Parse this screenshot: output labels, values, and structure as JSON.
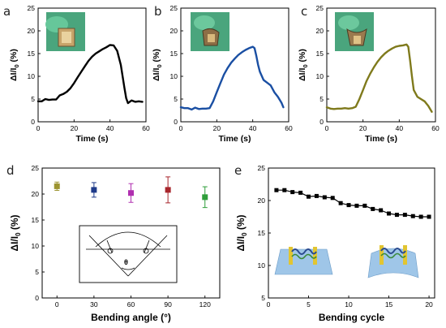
{
  "chart_data": [
    {
      "panel": "a",
      "type": "line",
      "xlabel": "Time (s)",
      "ylabel": "ΔI/I0 (%)",
      "xlim": [
        0,
        60
      ],
      "ylim": [
        0,
        25
      ],
      "xticks": [
        0,
        20,
        40,
        60
      ],
      "yticks": [
        0,
        5,
        10,
        15,
        20,
        25
      ],
      "color": "#000000",
      "x": [
        0,
        2,
        4,
        6,
        8,
        10,
        12,
        14,
        16,
        18,
        20,
        22,
        24,
        26,
        28,
        30,
        32,
        34,
        36,
        38,
        40,
        42,
        44,
        46,
        47,
        48,
        49,
        50,
        52,
        54,
        56,
        58
      ],
      "y": [
        4.5,
        4.5,
        5.0,
        4.8,
        4.9,
        4.9,
        5.8,
        6.1,
        6.6,
        7.4,
        8.5,
        9.8,
        11.0,
        12.2,
        13.4,
        14.3,
        15.0,
        15.5,
        16.0,
        16.4,
        16.9,
        16.8,
        15.6,
        12.5,
        10.0,
        7.5,
        5.2,
        4.1,
        4.7,
        4.4,
        4.5,
        4.4
      ]
    },
    {
      "panel": "b",
      "type": "line",
      "xlabel": "Time (s)",
      "ylabel": "ΔI/I0 (%)",
      "xlim": [
        0,
        60
      ],
      "ylim": [
        0,
        25
      ],
      "xticks": [
        0,
        20,
        40,
        60
      ],
      "yticks": [
        0,
        5,
        10,
        15,
        20,
        25
      ],
      "color": "#1a4fa3",
      "x": [
        0,
        2,
        4,
        6,
        8,
        10,
        12,
        14,
        16,
        18,
        20,
        22,
        24,
        26,
        28,
        30,
        32,
        34,
        36,
        38,
        40,
        41,
        42,
        43,
        44,
        46,
        48,
        50,
        52,
        54,
        56,
        57
      ],
      "y": [
        3.2,
        3.0,
        3.0,
        2.7,
        3.1,
        2.8,
        2.9,
        2.9,
        3.0,
        4.5,
        6.5,
        8.5,
        10.4,
        11.8,
        13.0,
        13.9,
        14.7,
        15.3,
        15.8,
        16.2,
        16.5,
        16.2,
        14.5,
        12.5,
        11.0,
        9.2,
        8.6,
        8.0,
        6.5,
        5.5,
        4.2,
        3.2
      ]
    },
    {
      "panel": "c",
      "type": "line",
      "xlabel": "Time (s)",
      "ylabel": "ΔI/I0 (%)",
      "xlim": [
        0,
        60
      ],
      "ylim": [
        0,
        25
      ],
      "xticks": [
        0,
        20,
        40,
        60
      ],
      "yticks": [
        0,
        5,
        10,
        15,
        20,
        25
      ],
      "color": "#7f7a1c",
      "x": [
        0,
        2,
        4,
        6,
        8,
        10,
        12,
        14,
        16,
        18,
        20,
        22,
        24,
        26,
        28,
        30,
        32,
        34,
        36,
        38,
        40,
        42,
        44,
        45,
        46,
        47,
        48,
        50,
        52,
        54,
        56,
        58
      ],
      "y": [
        3.2,
        2.9,
        2.8,
        2.9,
        2.9,
        3.0,
        2.9,
        3.0,
        3.3,
        5.0,
        7.0,
        9.0,
        10.6,
        12.0,
        13.2,
        14.2,
        15.0,
        15.6,
        16.1,
        16.5,
        16.7,
        16.8,
        17.0,
        16.5,
        13.5,
        10.0,
        7.0,
        5.5,
        5.0,
        4.5,
        3.5,
        2.2
      ]
    },
    {
      "panel": "d",
      "type": "scatter",
      "xlabel": "Bending angle (°)",
      "ylabel": "ΔI/I0 (%)",
      "xlim": [
        -12,
        132
      ],
      "ylim": [
        0,
        25
      ],
      "xticks": [
        0,
        30,
        60,
        90,
        120
      ],
      "yticks": [
        0,
        5,
        10,
        15,
        20,
        25
      ],
      "x": [
        0,
        30,
        60,
        90,
        120
      ],
      "y": [
        21.5,
        20.8,
        20.2,
        20.8,
        19.4
      ],
      "err": [
        0.8,
        1.4,
        1.8,
        2.5,
        2.0
      ],
      "colors": [
        "#9c9430",
        "#1f3b8a",
        "#b02fb0",
        "#a8262c",
        "#2e9e3a"
      ],
      "inset_label": "θ"
    },
    {
      "panel": "e",
      "type": "line",
      "xlabel": "Bending cycle",
      "ylabel": "ΔI/I0 (%)",
      "xlim": [
        0,
        20.7
      ],
      "ylim": [
        5,
        25
      ],
      "xticks": [
        0,
        5,
        10,
        15,
        20
      ],
      "yticks": [
        5,
        10,
        15,
        20,
        25
      ],
      "color": "#000000",
      "x": [
        1,
        2,
        3,
        4,
        5,
        6,
        7,
        8,
        9,
        10,
        11,
        12,
        13,
        14,
        15,
        16,
        17,
        18,
        19,
        20
      ],
      "y": [
        21.6,
        21.6,
        21.3,
        21.2,
        20.6,
        20.7,
        20.5,
        20.4,
        19.6,
        19.3,
        19.2,
        19.2,
        18.7,
        18.5,
        18.0,
        17.8,
        17.8,
        17.6,
        17.5,
        17.5
      ]
    }
  ]
}
